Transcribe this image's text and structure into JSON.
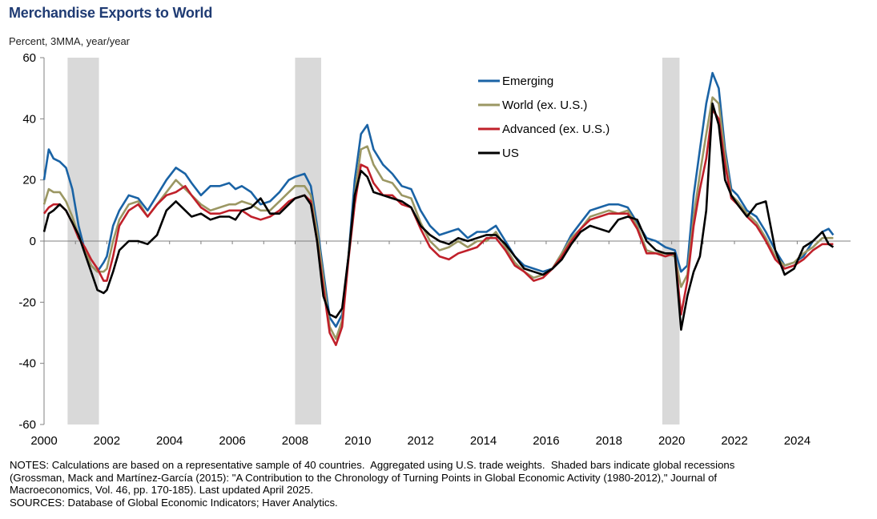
{
  "chart_data": {
    "type": "line",
    "title": "Merchandise Exports to World",
    "subtitle": "Percent, 3MMA,  year/year",
    "xlim": [
      2000.0,
      2025.7
    ],
    "ylim": [
      -60,
      60
    ],
    "x_ticks": [
      "2000",
      "2002",
      "2004",
      "2006",
      "2008",
      "2010",
      "2012",
      "2014",
      "2016",
      "2018",
      "2020",
      "2022",
      "2024"
    ],
    "x_tick_values": [
      2000,
      2002,
      2004,
      2006,
      2008,
      2010,
      2012,
      2014,
      2016,
      2018,
      2020,
      2022,
      2024
    ],
    "y_ticks": [
      "60",
      "40",
      "20",
      "0",
      "-20",
      "-40",
      "-60"
    ],
    "y_tick_values": [
      60,
      40,
      20,
      0,
      -20,
      -40,
      -60
    ],
    "legend_position": "top-right",
    "recessions": [
      [
        2000.75,
        2001.75
      ],
      [
        2008.0,
        2008.83
      ],
      [
        2019.7,
        2020.25
      ]
    ],
    "series": [
      {
        "name": "Emerging",
        "color": "#1a63a5",
        "x": [
          2000.0,
          2000.15,
          2000.3,
          2000.5,
          2000.7,
          2000.9,
          2001.1,
          2001.3,
          2001.5,
          2001.7,
          2001.9,
          2002.0,
          2002.2,
          2002.4,
          2002.7,
          2003.0,
          2003.3,
          2003.6,
          2003.9,
          2004.2,
          2004.5,
          2004.7,
          2005.0,
          2005.3,
          2005.6,
          2005.9,
          2006.1,
          2006.3,
          2006.6,
          2006.9,
          2007.2,
          2007.5,
          2007.8,
          2008.0,
          2008.3,
          2008.5,
          2008.7,
          2008.9,
          2009.1,
          2009.3,
          2009.5,
          2009.7,
          2009.9,
          2010.1,
          2010.3,
          2010.5,
          2010.8,
          2011.1,
          2011.4,
          2011.7,
          2012.0,
          2012.3,
          2012.6,
          2012.9,
          2013.2,
          2013.5,
          2013.8,
          2014.1,
          2014.4,
          2014.7,
          2015.0,
          2015.3,
          2015.6,
          2015.9,
          2016.2,
          2016.5,
          2016.8,
          2017.1,
          2017.4,
          2017.7,
          2018.0,
          2018.3,
          2018.6,
          2018.9,
          2019.2,
          2019.5,
          2019.8,
          2020.1,
          2020.3,
          2020.5,
          2020.7,
          2020.9,
          2021.1,
          2021.3,
          2021.5,
          2021.7,
          2021.9,
          2022.1,
          2022.4,
          2022.7,
          2023.0,
          2023.3,
          2023.6,
          2023.9,
          2024.2,
          2024.5,
          2024.8,
          2025.0,
          2025.15
        ],
        "y": [
          20,
          30,
          27,
          26,
          24,
          17,
          5,
          -3,
          -8,
          -10,
          -7,
          -5,
          5,
          10,
          15,
          14,
          10,
          15,
          20,
          24,
          22,
          19,
          15,
          18,
          18,
          19,
          17,
          18,
          16,
          12,
          13,
          16,
          20,
          21,
          22,
          18,
          5,
          -10,
          -25,
          -28,
          -24,
          -5,
          20,
          35,
          38,
          30,
          25,
          22,
          18,
          17,
          10,
          5,
          2,
          3,
          4,
          1,
          3,
          3,
          5,
          0,
          -5,
          -8,
          -9,
          -10,
          -9,
          -4,
          2,
          6,
          10,
          11,
          12,
          12,
          11,
          6,
          1,
          0,
          -2,
          -3,
          -10,
          -8,
          15,
          30,
          45,
          55,
          50,
          30,
          17,
          15,
          10,
          8,
          3,
          -3,
          -8,
          -7,
          -5,
          0,
          3,
          4,
          2
        ]
      },
      {
        "name": "World (ex. U.S.)",
        "color": "#9b9763",
        "x": [
          2000.0,
          2000.15,
          2000.3,
          2000.5,
          2000.7,
          2000.9,
          2001.1,
          2001.3,
          2001.5,
          2001.7,
          2001.9,
          2002.0,
          2002.2,
          2002.4,
          2002.7,
          2003.0,
          2003.3,
          2003.6,
          2003.9,
          2004.2,
          2004.5,
          2004.7,
          2005.0,
          2005.3,
          2005.6,
          2005.9,
          2006.1,
          2006.3,
          2006.6,
          2006.9,
          2007.2,
          2007.5,
          2007.8,
          2008.0,
          2008.3,
          2008.5,
          2008.7,
          2008.9,
          2009.1,
          2009.3,
          2009.5,
          2009.7,
          2009.9,
          2010.1,
          2010.3,
          2010.5,
          2010.8,
          2011.1,
          2011.4,
          2011.7,
          2012.0,
          2012.3,
          2012.6,
          2012.9,
          2013.2,
          2013.5,
          2013.8,
          2014.1,
          2014.4,
          2014.7,
          2015.0,
          2015.3,
          2015.6,
          2015.9,
          2016.2,
          2016.5,
          2016.8,
          2017.1,
          2017.4,
          2017.7,
          2018.0,
          2018.3,
          2018.6,
          2018.9,
          2019.2,
          2019.5,
          2019.8,
          2020.1,
          2020.3,
          2020.5,
          2020.7,
          2020.9,
          2021.1,
          2021.3,
          2021.5,
          2021.7,
          2021.9,
          2022.1,
          2022.4,
          2022.7,
          2023.0,
          2023.3,
          2023.6,
          2023.9,
          2024.2,
          2024.5,
          2024.8,
          2025.0,
          2025.15
        ],
        "y": [
          12,
          17,
          16,
          16,
          13,
          8,
          2,
          -3,
          -8,
          -10,
          -10,
          -9,
          0,
          7,
          12,
          13,
          8,
          12,
          16,
          20,
          17,
          15,
          12,
          10,
          11,
          12,
          12,
          13,
          12,
          10,
          10,
          13,
          16,
          18,
          18,
          15,
          3,
          -12,
          -28,
          -32,
          -26,
          -5,
          15,
          30,
          31,
          25,
          20,
          19,
          15,
          14,
          6,
          0,
          -3,
          -2,
          0,
          -2,
          0,
          0,
          3,
          -2,
          -7,
          -10,
          -12,
          -11,
          -9,
          -4,
          1,
          4,
          8,
          9,
          10,
          9,
          10,
          5,
          -3,
          -4,
          -4,
          -5,
          -15,
          -11,
          8,
          22,
          35,
          47,
          45,
          28,
          15,
          13,
          9,
          6,
          1,
          -5,
          -8,
          -7,
          -4,
          -2,
          1,
          1,
          1
        ]
      },
      {
        "name": "Advanced (ex. U.S.)",
        "color": "#c0202a",
        "x": [
          2000.0,
          2000.15,
          2000.3,
          2000.5,
          2000.7,
          2000.9,
          2001.1,
          2001.3,
          2001.5,
          2001.7,
          2001.9,
          2002.0,
          2002.2,
          2002.4,
          2002.7,
          2003.0,
          2003.3,
          2003.6,
          2003.9,
          2004.2,
          2004.5,
          2004.7,
          2005.0,
          2005.3,
          2005.6,
          2005.9,
          2006.1,
          2006.3,
          2006.6,
          2006.9,
          2007.2,
          2007.5,
          2007.8,
          2008.0,
          2008.3,
          2008.5,
          2008.7,
          2008.9,
          2009.1,
          2009.3,
          2009.5,
          2009.7,
          2009.9,
          2010.1,
          2010.3,
          2010.5,
          2010.8,
          2011.1,
          2011.4,
          2011.7,
          2012.0,
          2012.3,
          2012.6,
          2012.9,
          2013.2,
          2013.5,
          2013.8,
          2014.1,
          2014.4,
          2014.7,
          2015.0,
          2015.3,
          2015.6,
          2015.9,
          2016.2,
          2016.5,
          2016.8,
          2017.1,
          2017.4,
          2017.7,
          2018.0,
          2018.3,
          2018.6,
          2018.9,
          2019.2,
          2019.5,
          2019.8,
          2020.1,
          2020.3,
          2020.5,
          2020.7,
          2020.9,
          2021.1,
          2021.3,
          2021.5,
          2021.7,
          2021.9,
          2022.1,
          2022.4,
          2022.7,
          2023.0,
          2023.3,
          2023.6,
          2023.9,
          2024.2,
          2024.5,
          2024.8,
          2025.0,
          2025.15
        ],
        "y": [
          9,
          11,
          12,
          12,
          10,
          6,
          1,
          -2,
          -6,
          -9,
          -13,
          -13,
          -5,
          5,
          10,
          12,
          8,
          12,
          15,
          16,
          18,
          15,
          11,
          9,
          9,
          10,
          10,
          10,
          8,
          7,
          8,
          10,
          13,
          14,
          15,
          13,
          0,
          -15,
          -30,
          -34,
          -28,
          -6,
          12,
          25,
          24,
          19,
          15,
          15,
          12,
          11,
          4,
          -2,
          -5,
          -6,
          -4,
          -3,
          -2,
          1,
          1,
          -3,
          -8,
          -10,
          -13,
          -12,
          -9,
          -5,
          0,
          4,
          7,
          8,
          9,
          9,
          9,
          4,
          -4,
          -4,
          -5,
          -4,
          -24,
          -13,
          5,
          17,
          27,
          43,
          40,
          25,
          14,
          12,
          8,
          5,
          0,
          -6,
          -9,
          -8,
          -6,
          -3,
          -1,
          -1,
          -1
        ]
      },
      {
        "name": "US",
        "color": "#000000",
        "x": [
          2000.0,
          2000.15,
          2000.3,
          2000.5,
          2000.7,
          2000.9,
          2001.1,
          2001.3,
          2001.5,
          2001.7,
          2001.9,
          2002.0,
          2002.2,
          2002.4,
          2002.7,
          2003.0,
          2003.3,
          2003.6,
          2003.9,
          2004.2,
          2004.5,
          2004.7,
          2005.0,
          2005.3,
          2005.6,
          2005.9,
          2006.1,
          2006.3,
          2006.6,
          2006.9,
          2007.2,
          2007.5,
          2007.8,
          2008.0,
          2008.3,
          2008.5,
          2008.7,
          2008.9,
          2009.1,
          2009.3,
          2009.5,
          2009.7,
          2009.9,
          2010.1,
          2010.3,
          2010.5,
          2010.8,
          2011.1,
          2011.4,
          2011.7,
          2012.0,
          2012.3,
          2012.6,
          2012.9,
          2013.2,
          2013.5,
          2013.8,
          2014.1,
          2014.4,
          2014.7,
          2015.0,
          2015.3,
          2015.6,
          2015.9,
          2016.2,
          2016.5,
          2016.8,
          2017.1,
          2017.4,
          2017.7,
          2018.0,
          2018.3,
          2018.6,
          2018.9,
          2019.2,
          2019.5,
          2019.8,
          2020.1,
          2020.3,
          2020.5,
          2020.7,
          2020.9,
          2021.1,
          2021.3,
          2021.5,
          2021.7,
          2021.9,
          2022.1,
          2022.4,
          2022.7,
          2023.0,
          2023.3,
          2023.6,
          2023.9,
          2024.2,
          2024.5,
          2024.8,
          2025.0,
          2025.15
        ],
        "y": [
          3,
          9,
          10,
          12,
          10,
          6,
          2,
          -4,
          -10,
          -16,
          -17,
          -16,
          -10,
          -3,
          0,
          0,
          -1,
          2,
          10,
          13,
          10,
          8,
          9,
          7,
          8,
          8,
          7,
          10,
          11,
          14,
          9,
          9,
          12,
          14,
          15,
          12,
          0,
          -18,
          -24,
          -25,
          -22,
          -5,
          15,
          23,
          21,
          16,
          15,
          14,
          13,
          11,
          5,
          2,
          0,
          -1,
          1,
          0,
          1,
          2,
          2,
          -1,
          -5,
          -9,
          -10,
          -11,
          -9,
          -6,
          -1,
          3,
          5,
          4,
          3,
          7,
          8,
          7,
          0,
          -3,
          -4,
          -4,
          -29,
          -18,
          -10,
          -5,
          10,
          45,
          38,
          20,
          15,
          12,
          8,
          12,
          13,
          -3,
          -11,
          -9,
          -2,
          0,
          3,
          -1,
          -2
        ]
      }
    ]
  },
  "notes": [
    "NOTES: Calculations are based on a representative sample of 40 countries.  Aggregated using U.S. trade weights.  Shaded bars indicate global recessions",
    "(Grossman, Mack and Martínez-García (2015): \"A Contribution to the Chronology of Turning Points in Global Economic Activity (1980-2012),\" Journal of",
    "Macroeconomics, Vol. 46, pp. 170-185). Last updated April 2025.",
    "SOURCES: Database of Global Economic Indicators; Haver Analytics."
  ]
}
